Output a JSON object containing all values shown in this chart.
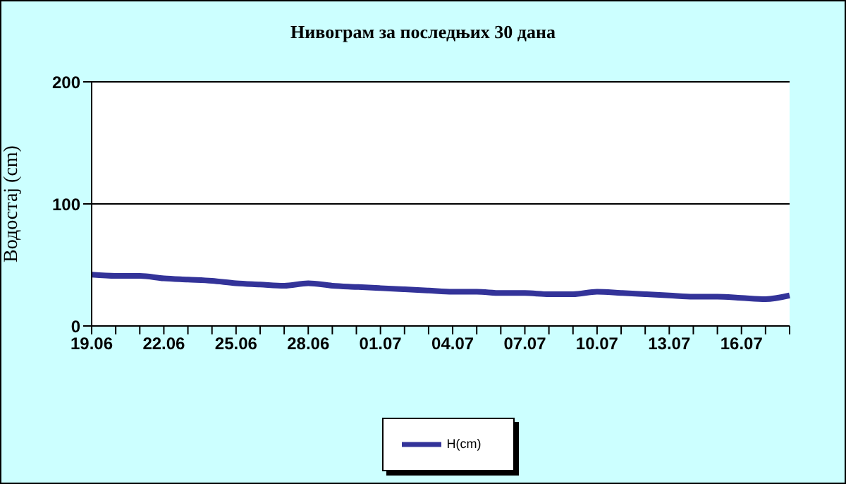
{
  "chart_data": {
    "type": "line",
    "title": "Нивограм за последњих 30 дана",
    "ylabel": "Водостај (cm)",
    "categories": [
      "19.06",
      null,
      null,
      "22.06",
      null,
      null,
      "25.06",
      null,
      null,
      "28.06",
      null,
      null,
      "01.07",
      null,
      null,
      "04.07",
      null,
      null,
      "07.07",
      null,
      null,
      "10.07",
      null,
      null,
      "13.07",
      null,
      null,
      "16.07",
      null,
      null
    ],
    "series": [
      {
        "name": "H(cm)",
        "color": "#333399",
        "values": [
          42,
          41,
          41,
          39,
          38,
          37,
          35,
          34,
          33,
          35,
          33,
          32,
          31,
          30,
          29,
          28,
          28,
          27,
          27,
          26,
          26,
          28,
          27,
          26,
          25,
          24,
          24,
          23,
          22,
          25
        ]
      }
    ],
    "ylim": [
      0,
      200
    ],
    "yticks": [
      0,
      100,
      200
    ],
    "grid": "y",
    "legend": "bottom",
    "marker": "none",
    "line_style": "solid"
  }
}
